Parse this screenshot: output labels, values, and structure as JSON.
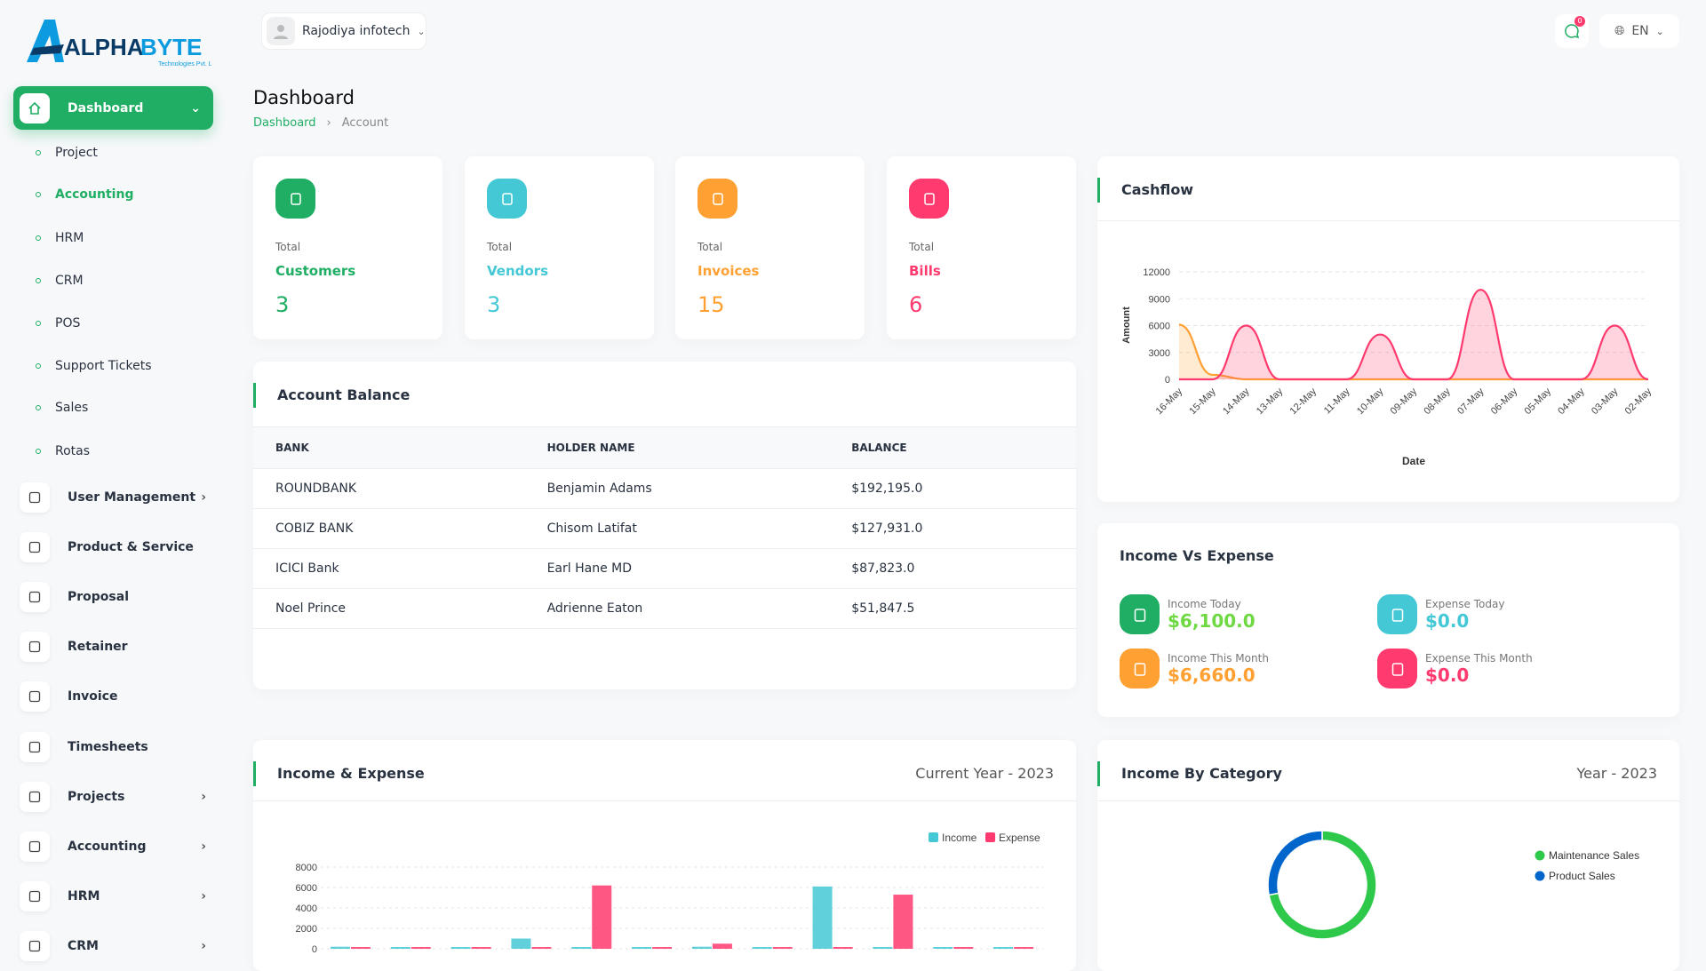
{
  "brand": {
    "name": "ALPHABYTE",
    "tagline": "Technologies Pvt. Ltd"
  },
  "topbar": {
    "company": "Rajodiya infotech",
    "notification_count": "0",
    "language": "EN"
  },
  "sidebar": {
    "dashboard": "Dashboard",
    "sub_items": [
      {
        "label": "Project"
      },
      {
        "label": "Accounting",
        "active": true
      },
      {
        "label": "HRM"
      },
      {
        "label": "CRM"
      },
      {
        "label": "POS"
      },
      {
        "label": "Support Tickets"
      },
      {
        "label": "Sales"
      },
      {
        "label": "Rotas"
      }
    ],
    "items": [
      {
        "label": "User Management",
        "icon": "users-icon",
        "chevron": true
      },
      {
        "label": "Product & Service",
        "icon": "cart-icon"
      },
      {
        "label": "Proposal",
        "icon": "proposal-icon"
      },
      {
        "label": "Retainer",
        "icon": "retainer-icon"
      },
      {
        "label": "Invoice",
        "icon": "invoice-icon"
      },
      {
        "label": "Timesheets",
        "icon": "clock-icon"
      },
      {
        "label": "Projects",
        "icon": "check-square-icon",
        "chevron": true
      },
      {
        "label": "Accounting",
        "icon": "grid-icon",
        "chevron": true
      },
      {
        "label": "HRM",
        "icon": "hrm-icon",
        "chevron": true
      },
      {
        "label": "CRM",
        "icon": "layers-icon",
        "chevron": true
      }
    ]
  },
  "page": {
    "title": "Dashboard",
    "breadcrumb": [
      "Dashboard",
      "Account"
    ]
  },
  "stats": [
    {
      "label": "Total",
      "name": "Customers",
      "value": "3",
      "color": "#1fae63",
      "icon": "users-icon"
    },
    {
      "label": "Total",
      "name": "Vendors",
      "value": "3",
      "color": "#44c8d5",
      "icon": "note-icon"
    },
    {
      "label": "Total",
      "name": "Invoices",
      "value": "15",
      "color": "#ffa033",
      "icon": "file-icon"
    },
    {
      "label": "Total",
      "name": "Bills",
      "value": "6",
      "color": "#ff3a6e",
      "icon": "clipboard-dollar-icon"
    }
  ],
  "account_balance": {
    "title": "Account Balance",
    "columns": [
      "BANK",
      "HOLDER NAME",
      "BALANCE"
    ],
    "rows": [
      [
        "ROUNDBANK",
        "Benjamin Adams",
        "$192,195.0"
      ],
      [
        "COBIZ BANK",
        "Chisom Latifat",
        "$127,931.0"
      ],
      [
        "ICICI Bank",
        "Earl Hane MD",
        "$87,823.0"
      ],
      [
        "Noel Prince",
        "Adrienne Eaton",
        "$51,847.5"
      ]
    ]
  },
  "income_vs_expense": {
    "title": "Income Vs Expense",
    "items": [
      {
        "label": "Income Today",
        "value": "$6,100.0",
        "color": "#1fae63",
        "text_color": "#6fd943"
      },
      {
        "label": "Expense Today",
        "value": "$0.0",
        "color": "#44c8d5",
        "text_color": "#44c8d5"
      },
      {
        "label": "Income This Month",
        "value": "$6,660.0",
        "color": "#ffa033",
        "text_color": "#ffa033"
      },
      {
        "label": "Expense This Month",
        "value": "$0.0",
        "color": "#ff3a6e",
        "text_color": "#ff3a6e"
      }
    ]
  },
  "chart_data": [
    {
      "id": "cashflow",
      "title": "Cashflow",
      "type": "area",
      "xlabel": "Date",
      "ylabel": "Amount",
      "ylim": [
        0,
        12000
      ],
      "yticks": [
        0,
        3000,
        6000,
        9000,
        12000
      ],
      "grid": true,
      "x": [
        "16-May",
        "15-May",
        "14-May",
        "13-May",
        "12-May",
        "11-May",
        "10-May",
        "09-May",
        "08-May",
        "07-May",
        "06-May",
        "05-May",
        "04-May",
        "03-May",
        "02-May"
      ],
      "series": [
        {
          "color": "#ffa033",
          "values": [
            6100,
            500,
            0,
            0,
            0,
            0,
            0,
            0,
            0,
            0,
            0,
            0,
            0,
            0,
            0
          ]
        },
        {
          "color": "#ff3a6e",
          "values": [
            0,
            0,
            6000,
            0,
            0,
            0,
            5000,
            0,
            0,
            10000,
            0,
            0,
            0,
            6000,
            0
          ]
        }
      ]
    },
    {
      "id": "income-expense",
      "title": "Income & Expense",
      "subtitle": "Current Year - 2023",
      "type": "bar",
      "ylim": [
        0,
        8000
      ],
      "yticks": [
        0,
        2000,
        4000,
        6000,
        8000
      ],
      "grid": true,
      "legend": "top-right",
      "series": [
        {
          "name": "Income",
          "color": "#44c8d5",
          "values": [
            200,
            0,
            0,
            1000,
            0,
            0,
            200,
            0,
            6100,
            0,
            0,
            0
          ]
        },
        {
          "name": "Expense",
          "color": "#ff3a6e",
          "values": [
            0,
            0,
            0,
            0,
            6200,
            0,
            500,
            0,
            0,
            5300,
            0,
            0
          ]
        }
      ]
    },
    {
      "id": "income-category",
      "title": "Income By Category",
      "subtitle": "Year - 2023",
      "type": "pie",
      "legend": "right",
      "slices": [
        {
          "name": "Maintenance Sales",
          "value": 72,
          "color": "#2ec84a"
        },
        {
          "name": "Product Sales",
          "value": 28,
          "color": "#0066cc"
        }
      ]
    }
  ]
}
